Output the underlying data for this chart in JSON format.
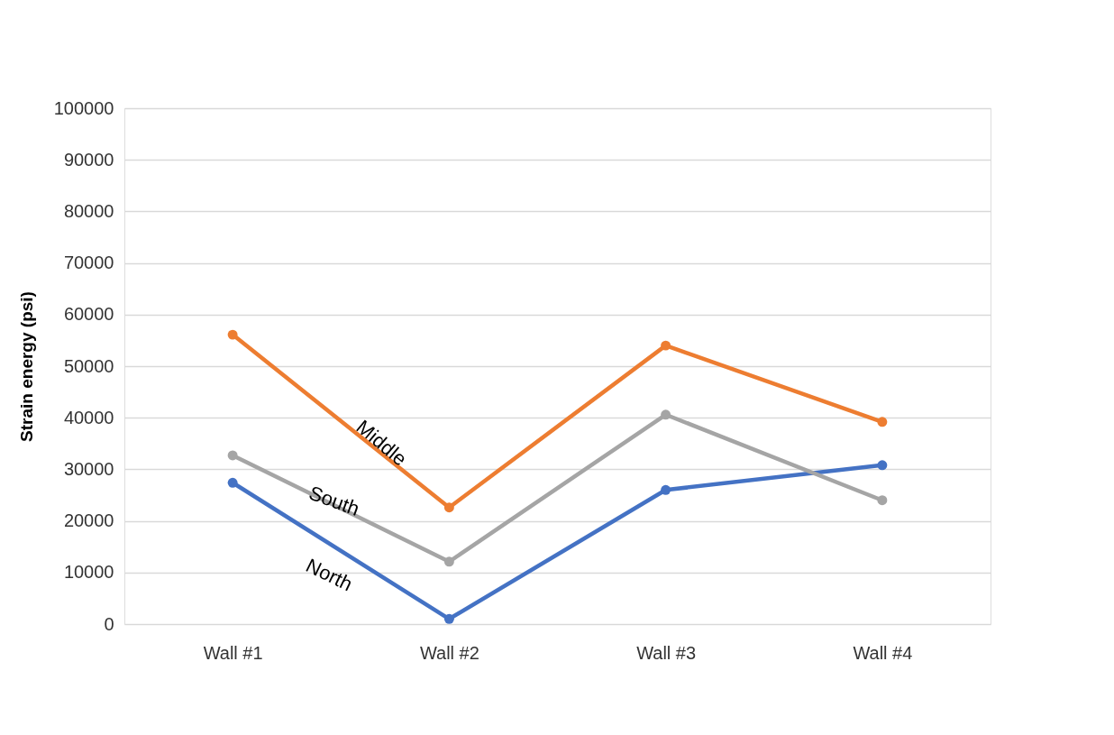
{
  "chart_data": {
    "type": "line",
    "ylabel": "Strain energy (psi)",
    "categories": [
      "Wall #1",
      "Wall #2",
      "Wall #3",
      "Wall #4"
    ],
    "series": [
      {
        "name": "North",
        "color": "#4472c4",
        "values": [
          27400,
          1000,
          26000,
          30800
        ]
      },
      {
        "name": "South",
        "color": "#a5a5a5",
        "values": [
          32700,
          12100,
          40600,
          24000
        ]
      },
      {
        "name": "Middle",
        "color": "#ed7d31",
        "values": [
          56100,
          22600,
          54000,
          39200
        ]
      }
    ],
    "ylim": [
      0,
      100000
    ],
    "yticks": [
      0,
      10000,
      20000,
      30000,
      40000,
      50000,
      60000,
      70000,
      80000,
      90000,
      100000
    ],
    "grid": "y",
    "legend": false,
    "marker": "circle",
    "line_style": "solid"
  }
}
